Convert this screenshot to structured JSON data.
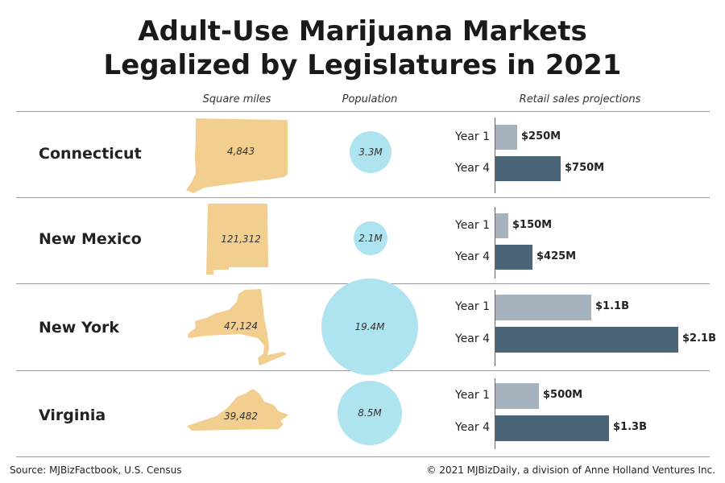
{
  "title_line1": "Adult-Use Marijuana Markets",
  "title_line2": "Legalized by Legislatures in 2021",
  "columns": {
    "area": "Square miles",
    "population": "Population",
    "sales": "Retail sales projections"
  },
  "colors": {
    "shape": "#f3cf8f",
    "bubble": "#aee3f0",
    "year1_bar": "#a6b2bd",
    "year4_bar": "#4a6478"
  },
  "footer": {
    "source": "Source: MJBizFactbook, U.S. Census",
    "copyright": "© 2021 MJBizDaily, a division of Anne Holland Ventures Inc."
  },
  "chart_data": {
    "type": "bar",
    "categories": [
      "Connecticut",
      "New Mexico",
      "New York",
      "Virginia"
    ],
    "square_miles": [
      4843,
      121312,
      47124,
      39482
    ],
    "square_miles_labels": [
      "4,843",
      "121,312",
      "47,124",
      "39,482"
    ],
    "population_millions": [
      3.3,
      2.1,
      19.4,
      8.5
    ],
    "population_labels": [
      "3.3M",
      "2.1M",
      "19.4M",
      "8.5M"
    ],
    "series": [
      {
        "name": "Year 1",
        "values": [
          250,
          150,
          1100,
          500
        ],
        "labels": [
          "$250M",
          "$150M",
          "$1.1B",
          "$500M"
        ]
      },
      {
        "name": "Year 4",
        "values": [
          750,
          425,
          2100,
          1300
        ],
        "labels": [
          "$750M",
          "$425M",
          "$2.1B",
          "$1.3B"
        ]
      }
    ],
    "value_unit": "$M",
    "xlim": [
      0,
      2100
    ]
  }
}
